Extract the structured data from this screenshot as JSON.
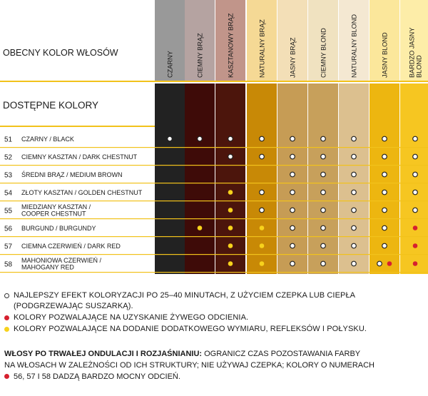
{
  "header": {
    "current_color_label": "OBECNY KOLOR WŁOSÓW",
    "available_colors_label": "DOSTĘPNE KOLORY"
  },
  "columns": [
    {
      "label": [
        "CZARNY"
      ],
      "swatch": "#999999",
      "body": "#222222"
    },
    {
      "label": [
        "CIEMNY BRĄZ"
      ],
      "swatch": "#b5a3a1",
      "body": "#3e0b08"
    },
    {
      "label": [
        "KASZTANOWY BRĄZ"
      ],
      "swatch": "#c1958a",
      "body": "#4c150c"
    },
    {
      "label": [
        "NATURALNY BRĄZ"
      ],
      "swatch": "#f5d995",
      "body": "#c88906"
    },
    {
      "label": [
        "JASNY BRĄZ"
      ],
      "swatch": "#f3dfb7",
      "body": "#c69c55"
    },
    {
      "label": [
        "CIEMNY BLOND"
      ],
      "swatch": "#f0e2c0",
      "body": "#c7a05b"
    },
    {
      "label": [
        "NATURALNY BLOND"
      ],
      "swatch": "#f4e8d2",
      "body": "#dcc08f"
    },
    {
      "label": [
        "JASNY BLOND"
      ],
      "swatch": "#fbe79b",
      "body": "#edb610"
    },
    {
      "label": [
        "BARDZO JASNY",
        "BLOND"
      ],
      "swatch": "#fdeda8",
      "body": "#f6c621"
    }
  ],
  "rows": [
    {
      "num": "51",
      "name": [
        "CZARNY / BLACK"
      ],
      "marks": [
        [
          "w"
        ],
        [
          "w"
        ],
        [
          "w"
        ],
        [
          "w"
        ],
        [
          "w"
        ],
        [
          "w"
        ],
        [
          "w"
        ],
        [
          "w"
        ],
        [
          "w"
        ]
      ]
    },
    {
      "num": "52",
      "name": [
        "CIEMNY KASZTAN / DARK CHESTNUT"
      ],
      "marks": [
        [],
        [],
        [
          "w"
        ],
        [
          "w"
        ],
        [
          "w"
        ],
        [
          "w"
        ],
        [
          "w"
        ],
        [
          "w"
        ],
        [
          "w"
        ]
      ]
    },
    {
      "num": "53",
      "name": [
        "ŚREDNI BRĄZ / MEDIUM BROWN"
      ],
      "marks": [
        [],
        [],
        [],
        [],
        [
          "w"
        ],
        [
          "w"
        ],
        [
          "w"
        ],
        [
          "w"
        ],
        [
          "w"
        ]
      ]
    },
    {
      "num": "54",
      "name": [
        "ZŁOTY KASZTAN / GOLDEN CHESTNUT"
      ],
      "marks": [
        [],
        [],
        [
          "y"
        ],
        [
          "w"
        ],
        [
          "w"
        ],
        [
          "w"
        ],
        [
          "w"
        ],
        [
          "w"
        ],
        [
          "w"
        ]
      ]
    },
    {
      "num": "55",
      "name": [
        "MIEDZIANY KASZTAN /",
        "COOPER CHESTNUT"
      ],
      "marks": [
        [],
        [],
        [
          "y"
        ],
        [
          "w"
        ],
        [
          "w"
        ],
        [
          "w"
        ],
        [
          "w"
        ],
        [
          "w"
        ],
        [
          "w"
        ]
      ]
    },
    {
      "num": "56",
      "name": [
        "BURGUND / BURGUNDY"
      ],
      "marks": [
        [],
        [
          "y"
        ],
        [
          "y"
        ],
        [
          "y"
        ],
        [
          "w"
        ],
        [
          "w"
        ],
        [
          "w"
        ],
        [
          "w"
        ],
        [
          "r"
        ]
      ]
    },
    {
      "num": "57",
      "name": [
        "CIEMNA CZERWIEŃ / DARK RED"
      ],
      "marks": [
        [],
        [],
        [
          "y"
        ],
        [
          "y"
        ],
        [
          "w"
        ],
        [
          "w"
        ],
        [
          "w"
        ],
        [
          "w"
        ],
        [
          "r"
        ]
      ]
    },
    {
      "num": "58",
      "name": [
        "MAHONIOWA CZERWIEŃ /",
        "MAHOGANY RED"
      ],
      "marks": [
        [],
        [],
        [
          "y"
        ],
        [
          "y"
        ],
        [
          "w"
        ],
        [
          "w"
        ],
        [
          "w"
        ],
        [
          "w",
          "r"
        ],
        [
          "r"
        ]
      ]
    }
  ],
  "legend": {
    "white_line1": "NAJLEPSZY EFEKT KOLORYZACJI PO 25–40 MINUTACH, Z UŻYCIEM CZEPKA LUB CIEPŁA",
    "white_line2": "(PODGRZEWAJĄC SUSZARKĄ).",
    "red": "KOLORY POZWALAJĄCE NA UZYSKANIE ŻYWEGO ODCIENIA.",
    "yellow": "KOLORY POZWALAJĄCE NA DODANIE DODATKOWEGO WYMIARU, REFLEKSÓW I POŁYSKU."
  },
  "note": {
    "bold": "WŁOSY PO TRWAŁEJ ONDULACJI I ROZJAŚNIANIU:",
    "text1": " OGRANICZ CZAS POZOSTAWANIA FARBY",
    "text2": "NA WŁOSACH W ZALEŻNOŚCI OD ICH STRUKTURY; NIE UŻYWAJ CZEPKA; KOLORY O NUMERACH",
    "text3": "56, 57 I 58 DADZĄ BARDZO MOCNY ODCIEŃ."
  },
  "colors": {
    "rule": "#f2c21b",
    "dot_white": "#ffffff",
    "dot_red": "#d6202f",
    "dot_yellow": "#f7d21c"
  }
}
